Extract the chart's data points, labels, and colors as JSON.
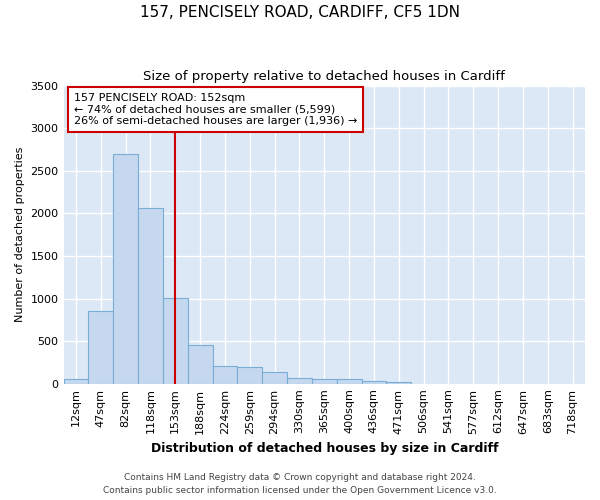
{
  "title": "157, PENCISELY ROAD, CARDIFF, CF5 1DN",
  "subtitle": "Size of property relative to detached houses in Cardiff",
  "xlabel": "Distribution of detached houses by size in Cardiff",
  "ylabel": "Number of detached properties",
  "categories": [
    "12sqm",
    "47sqm",
    "82sqm",
    "118sqm",
    "153sqm",
    "188sqm",
    "224sqm",
    "259sqm",
    "294sqm",
    "330sqm",
    "365sqm",
    "400sqm",
    "436sqm",
    "471sqm",
    "506sqm",
    "541sqm",
    "577sqm",
    "612sqm",
    "647sqm",
    "683sqm",
    "718sqm"
  ],
  "values": [
    60,
    850,
    2700,
    2060,
    1010,
    450,
    210,
    200,
    140,
    70,
    60,
    55,
    35,
    25,
    0,
    0,
    0,
    0,
    0,
    0,
    0
  ],
  "bar_color": "#c5d8f0",
  "bar_edge_color": "#7aadd4",
  "vline_color": "#cc0000",
  "vline_position": 4,
  "annotation_line1": "157 PENCISELY ROAD: 152sqm",
  "annotation_line2": "← 74% of detached houses are smaller (5,599)",
  "annotation_line3": "26% of semi-detached houses are larger (1,936) →",
  "annotation_box_edgecolor": "#cc0000",
  "ylim": [
    0,
    3500
  ],
  "yticks": [
    0,
    500,
    1000,
    1500,
    2000,
    2500,
    3000,
    3500
  ],
  "plot_bg_color": "#dce8f5",
  "grid_color": "#ffffff",
  "footer_line1": "Contains HM Land Registry data © Crown copyright and database right 2024.",
  "footer_line2": "Contains public sector information licensed under the Open Government Licence v3.0.",
  "title_fontsize": 11,
  "subtitle_fontsize": 9.5,
  "xlabel_fontsize": 9,
  "ylabel_fontsize": 8,
  "tick_fontsize": 8,
  "annotation_fontsize": 8,
  "footer_fontsize": 6.5
}
